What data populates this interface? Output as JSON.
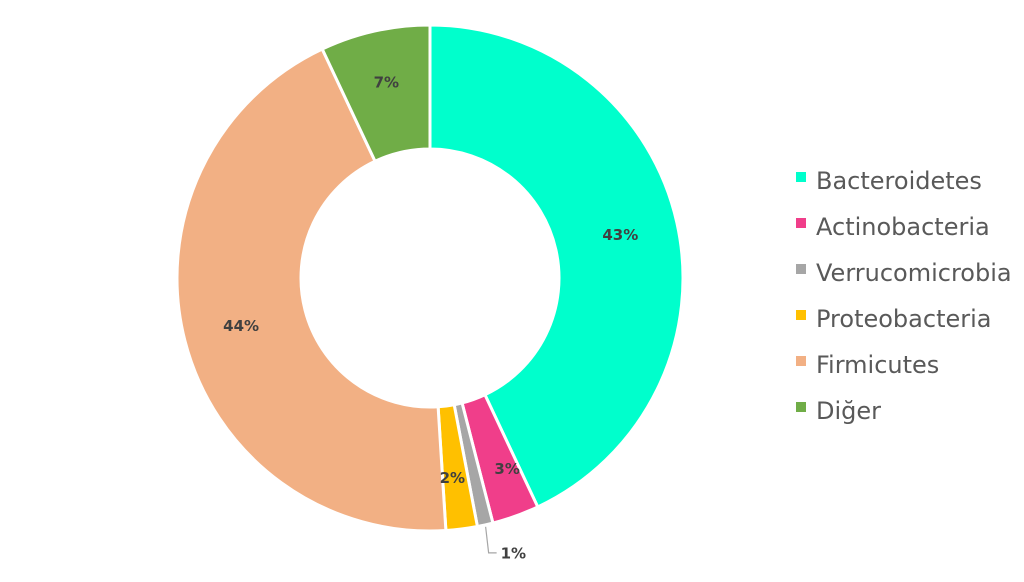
{
  "chart_data": {
    "type": "pie",
    "style": "donut",
    "legend_position": "right",
    "slices": [
      {
        "label": "Bacteroidetes",
        "value": 43,
        "display": "43%",
        "color": "#00FFCC"
      },
      {
        "label": "Actinobacteria",
        "value": 3,
        "display": "3%",
        "color": "#F03E8A"
      },
      {
        "label": "Verrucomicrobia",
        "value": 1,
        "display": "1%",
        "color": "#A6A6A6"
      },
      {
        "label": "Proteobacteria",
        "value": 2,
        "display": "2%",
        "color": "#FFC000"
      },
      {
        "label": "Firmicutes",
        "value": 44,
        "display": "44%",
        "color": "#F2B084"
      },
      {
        "label": "Diğer",
        "value": 7,
        "display": "7%",
        "color": "#70AD47"
      }
    ]
  }
}
